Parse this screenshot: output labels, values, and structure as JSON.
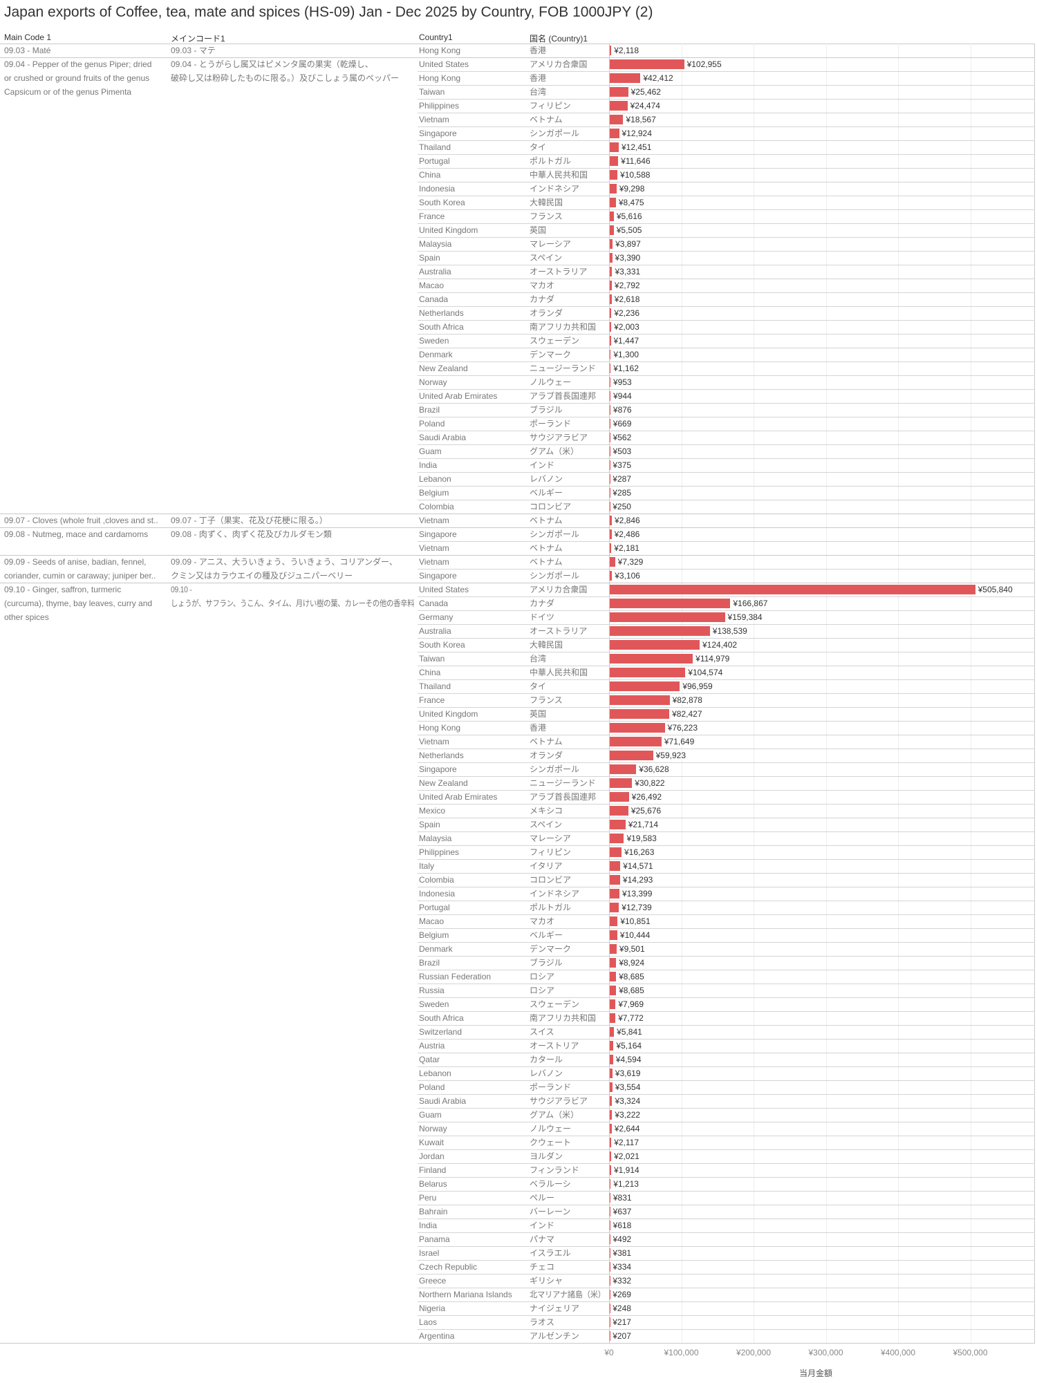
{
  "title": "Japan exports of Coffee, tea, mate and spices (HS-09) Jan - Dec 2025 by Country, FOB 1000JPY (2)",
  "headers": {
    "main_code": "Main Code 1",
    "main_code_ja": "メインコード1",
    "country": "Country1",
    "country_ja": "国名 (Country)1"
  },
  "colors": {
    "bar": "#e15759"
  },
  "chart_data": {
    "type": "bar",
    "orientation": "horizontal",
    "xlabel": "当月金額",
    "xlim": [
      0,
      580000
    ],
    "x_ticks": [
      "¥0",
      "¥100,000",
      "¥200,000",
      "¥300,000",
      "¥400,000",
      "¥500,000"
    ],
    "x_tick_values": [
      0,
      100000,
      200000,
      300000,
      400000,
      500000
    ],
    "grid": true,
    "groups": [
      {
        "code_en": "09.03 - Maté",
        "code_ja": "09.03 - マテ",
        "rows": [
          [
            "Hong Kong",
            "香港",
            2118
          ]
        ]
      },
      {
        "code_en": "09.04 - Pepper of the genus Piper; dried\nor crushed or ground fruits of the genus\nCapsicum or of the genus Pimenta",
        "code_ja": "09.04 - とうがらし属又はピメンタ属の果実（乾燥し、\n破砕し又は粉砕したものに限る。）及びこしょう属のペッパー",
        "rows": [
          [
            "United States",
            "アメリカ合衆国",
            102955
          ],
          [
            "Hong Kong",
            "香港",
            42412
          ],
          [
            "Taiwan",
            "台湾",
            25462
          ],
          [
            "Philippines",
            "フィリピン",
            24474
          ],
          [
            "Vietnam",
            "ベトナム",
            18567
          ],
          [
            "Singapore",
            "シンガポール",
            12924
          ],
          [
            "Thailand",
            "タイ",
            12451
          ],
          [
            "Portugal",
            "ポルトガル",
            11646
          ],
          [
            "China",
            "中華人民共和国",
            10588
          ],
          [
            "Indonesia",
            "インドネシア",
            9298
          ],
          [
            "South Korea",
            "大韓民国",
            8475
          ],
          [
            "France",
            "フランス",
            5616
          ],
          [
            "United Kingdom",
            "英国",
            5505
          ],
          [
            "Malaysia",
            "マレーシア",
            3897
          ],
          [
            "Spain",
            "スペイン",
            3390
          ],
          [
            "Australia",
            "オーストラリア",
            3331
          ],
          [
            "Macao",
            "マカオ",
            2792
          ],
          [
            "Canada",
            "カナダ",
            2618
          ],
          [
            "Netherlands",
            "オランダ",
            2236
          ],
          [
            "South Africa",
            "南アフリカ共和国",
            2003
          ],
          [
            "Sweden",
            "スウェーデン",
            1447
          ],
          [
            "Denmark",
            "デンマーク",
            1300
          ],
          [
            "New Zealand",
            "ニュージーランド",
            1162
          ],
          [
            "Norway",
            "ノルウェー",
            953
          ],
          [
            "United Arab Emirates",
            "アラブ首長国連邦",
            944
          ],
          [
            "Brazil",
            "ブラジル",
            876
          ],
          [
            "Poland",
            "ポーランド",
            669
          ],
          [
            "Saudi Arabia",
            "サウジアラビア",
            562
          ],
          [
            "Guam",
            "グアム（米）",
            503
          ],
          [
            "India",
            "インド",
            375
          ],
          [
            "Lebanon",
            "レバノン",
            287
          ],
          [
            "Belgium",
            "ベルギー",
            285
          ],
          [
            "Colombia",
            "コロンビア",
            250
          ]
        ]
      },
      {
        "code_en": "09.07 - Cloves (whole fruit ,cloves and st..",
        "code_ja": "09.07 - 丁子（果実、花及び花梗に限る。）",
        "rows": [
          [
            "Vietnam",
            "ベトナム",
            2846
          ]
        ]
      },
      {
        "code_en": "09.08 - Nutmeg, mace and cardamoms",
        "code_ja": "09.08 - 肉ずく、肉ずく花及びカルダモン類",
        "rows": [
          [
            "Singapore",
            "シンガポール",
            2486
          ],
          [
            "Vietnam",
            "ベトナム",
            2181
          ]
        ]
      },
      {
        "code_en": "09.09 - Seeds of anise, badian, fennel,\ncoriander, cumin or caraway; juniper ber..",
        "code_ja": "09.09 - アニス、大ういきょう、ういきょう、コリアンダー、\nクミン又はカラウエイの種及びジュニパーベリー",
        "rows": [
          [
            "Vietnam",
            "ベトナム",
            7329
          ],
          [
            "Singapore",
            "シンガポール",
            3106
          ]
        ]
      },
      {
        "code_en": "09.10 - Ginger, saffron, turmeric\n(curcuma), thyme, bay leaves, curry and\nother spices",
        "code_ja": "09.10 -\nしょうが、サフラン、うこん、タイム、月けい樹の葉、カレーその他の香辛料",
        "rows": [
          [
            "United States",
            "アメリカ合衆国",
            505840
          ],
          [
            "Canada",
            "カナダ",
            166867
          ],
          [
            "Germany",
            "ドイツ",
            159384
          ],
          [
            "Australia",
            "オーストラリア",
            138539
          ],
          [
            "South Korea",
            "大韓民国",
            124402
          ],
          [
            "Taiwan",
            "台湾",
            114979
          ],
          [
            "China",
            "中華人民共和国",
            104574
          ],
          [
            "Thailand",
            "タイ",
            96959
          ],
          [
            "France",
            "フランス",
            82878
          ],
          [
            "United Kingdom",
            "英国",
            82427
          ],
          [
            "Hong Kong",
            "香港",
            76223
          ],
          [
            "Vietnam",
            "ベトナム",
            71649
          ],
          [
            "Netherlands",
            "オランダ",
            59923
          ],
          [
            "Singapore",
            "シンガポール",
            36628
          ],
          [
            "New Zealand",
            "ニュージーランド",
            30822
          ],
          [
            "United Arab Emirates",
            "アラブ首長国連邦",
            26492
          ],
          [
            "Mexico",
            "メキシコ",
            25676
          ],
          [
            "Spain",
            "スペイン",
            21714
          ],
          [
            "Malaysia",
            "マレーシア",
            19583
          ],
          [
            "Philippines",
            "フィリピン",
            16263
          ],
          [
            "Italy",
            "イタリア",
            14571
          ],
          [
            "Colombia",
            "コロンビア",
            14293
          ],
          [
            "Indonesia",
            "インドネシア",
            13399
          ],
          [
            "Portugal",
            "ポルトガル",
            12739
          ],
          [
            "Macao",
            "マカオ",
            10851
          ],
          [
            "Belgium",
            "ベルギー",
            10444
          ],
          [
            "Denmark",
            "デンマーク",
            9501
          ],
          [
            "Brazil",
            "ブラジル",
            8924
          ],
          [
            "Russian Federation",
            "ロシア",
            8685
          ],
          [
            "Russia",
            "ロシア",
            8685
          ],
          [
            "Sweden",
            "スウェーデン",
            7969
          ],
          [
            "South Africa",
            "南アフリカ共和国",
            7772
          ],
          [
            "Switzerland",
            "スイス",
            5841
          ],
          [
            "Austria",
            "オーストリア",
            5164
          ],
          [
            "Qatar",
            "カタール",
            4594
          ],
          [
            "Lebanon",
            "レバノン",
            3619
          ],
          [
            "Poland",
            "ポーランド",
            3554
          ],
          [
            "Saudi Arabia",
            "サウジアラビア",
            3324
          ],
          [
            "Guam",
            "グアム（米）",
            3222
          ],
          [
            "Norway",
            "ノルウェー",
            2644
          ],
          [
            "Kuwait",
            "クウェート",
            2117
          ],
          [
            "Jordan",
            "ヨルダン",
            2021
          ],
          [
            "Finland",
            "フィンランド",
            1914
          ],
          [
            "Belarus",
            "ベラルーシ",
            1213
          ],
          [
            "Peru",
            "ペルー",
            831
          ],
          [
            "Bahrain",
            "バーレーン",
            637
          ],
          [
            "India",
            "インド",
            618
          ],
          [
            "Panama",
            "パナマ",
            492
          ],
          [
            "Israel",
            "イスラエル",
            381
          ],
          [
            "Czech Republic",
            "チェコ",
            334
          ],
          [
            "Greece",
            "ギリシャ",
            332
          ],
          [
            "Northern Mariana Islands",
            "北マリアナ諸島（米）",
            269
          ],
          [
            "Nigeria",
            "ナイジェリア",
            248
          ],
          [
            "Laos",
            "ラオス",
            217
          ],
          [
            "Argentina",
            "アルゼンチン",
            207
          ]
        ]
      }
    ]
  }
}
